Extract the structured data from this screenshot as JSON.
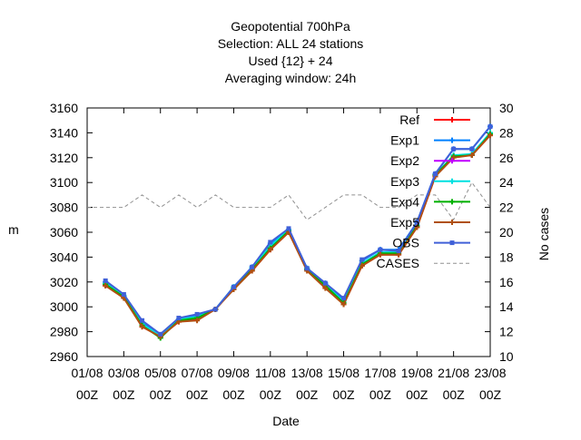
{
  "chart_data": {
    "type": "line",
    "title_lines": [
      "Geopotential 700hPa",
      "Selection: ALL      24 stations",
      "Used {12} + 24",
      "Averaging window: 24h"
    ],
    "xlabel": "Date",
    "ylabel": "m",
    "y2label": "No cases",
    "ylim": [
      2960,
      3160
    ],
    "yticks": [
      2960,
      2980,
      3000,
      3020,
      3040,
      3060,
      3080,
      3100,
      3120,
      3140,
      3160
    ],
    "y2lim": [
      10,
      30
    ],
    "y2ticks": [
      10,
      12,
      14,
      16,
      18,
      20,
      22,
      24,
      26,
      28,
      30
    ],
    "xlim": [
      0,
      22
    ],
    "xticks": [
      {
        "x": 0,
        "date": "01/08",
        "time": "00Z"
      },
      {
        "x": 2,
        "date": "03/08",
        "time": "00Z"
      },
      {
        "x": 4,
        "date": "05/08",
        "time": "00Z"
      },
      {
        "x": 6,
        "date": "07/08",
        "time": "00Z"
      },
      {
        "x": 8,
        "date": "09/08",
        "time": "00Z"
      },
      {
        "x": 10,
        "date": "11/08",
        "time": "00Z"
      },
      {
        "x": 12,
        "date": "13/08",
        "time": "00Z"
      },
      {
        "x": 14,
        "date": "15/08",
        "time": "00Z"
      },
      {
        "x": 16,
        "date": "17/08",
        "time": "00Z"
      },
      {
        "x": 18,
        "date": "19/08",
        "time": "00Z"
      },
      {
        "x": 20,
        "date": "21/08",
        "time": "00Z"
      },
      {
        "x": 22,
        "date": "23/08",
        "time": "00Z"
      }
    ],
    "x": [
      1,
      2,
      3,
      4,
      5,
      6,
      7,
      8,
      9,
      10,
      11,
      12,
      13,
      14,
      15,
      16,
      17,
      18,
      19,
      20,
      21,
      22
    ],
    "legend_position": "top-right",
    "series": [
      {
        "name": "Ref",
        "color": "#ff0000",
        "marker": "plus",
        "values": [
          3017,
          3008,
          2984,
          2976,
          2988,
          2990,
          2998,
          3015,
          3029,
          3046,
          3060,
          3030,
          3016,
          3002,
          3033,
          3042,
          3042,
          3064,
          3105,
          3121,
          3122,
          3138
        ]
      },
      {
        "name": "Exp1",
        "color": "#0080ff",
        "marker": "plus",
        "values": [
          3020,
          3009,
          2987,
          2977,
          2990,
          2993,
          2998,
          3016,
          3032,
          3051,
          3062,
          3031,
          3019,
          3005,
          3037,
          3046,
          3046,
          3068,
          3107,
          3127,
          3127,
          3145
        ]
      },
      {
        "name": "Exp2",
        "color": "#c000ff",
        "marker": "plus",
        "values": [
          3018,
          3008,
          2985,
          2976,
          2989,
          2991,
          2998,
          3015,
          3030,
          3048,
          3061,
          3030,
          3017,
          3003,
          3034,
          3043,
          3043,
          3065,
          3106,
          3121,
          3122,
          3139
        ]
      },
      {
        "name": "Exp3",
        "color": "#00e0e0",
        "marker": "plus",
        "values": [
          3019,
          3009,
          2986,
          2977,
          2990,
          2992,
          2998,
          3016,
          3031,
          3049,
          3062,
          3031,
          3018,
          3004,
          3035,
          3044,
          3044,
          3066,
          3106,
          3122,
          3123,
          3140
        ]
      },
      {
        "name": "Exp4",
        "color": "#00b000",
        "marker": "plus",
        "values": [
          3018,
          3008,
          2985,
          2975,
          2989,
          2991,
          2998,
          3015,
          3030,
          3047,
          3061,
          3030,
          3017,
          3003,
          3034,
          3043,
          3043,
          3065,
          3106,
          3121,
          3122,
          3139
        ]
      },
      {
        "name": "Exp5",
        "color": "#b05010",
        "marker": "plus",
        "values": [
          3017,
          3007,
          2984,
          2976,
          2988,
          2989,
          2998,
          3014,
          3029,
          3046,
          3060,
          3029,
          3015,
          3002,
          3033,
          3042,
          3042,
          3064,
          3105,
          3120,
          3122,
          3138
        ]
      },
      {
        "name": "OBS",
        "color": "#4060d8",
        "marker": "square",
        "values": [
          3021,
          3010,
          2989,
          2978,
          2991,
          2994,
          2998,
          3016,
          3032,
          3052,
          3063,
          3031,
          3019,
          3007,
          3038,
          3046,
          3045,
          3068,
          3107,
          3127,
          3127,
          3145
        ]
      }
    ],
    "cases_series": {
      "name": "CASES",
      "color": "#909090",
      "axis": "right",
      "x": [
        0,
        1,
        2,
        3,
        4,
        5,
        6,
        7,
        8,
        9,
        10,
        11,
        12,
        13,
        14,
        15,
        16,
        17,
        18,
        19,
        20,
        21,
        22
      ],
      "values": [
        22,
        22,
        22,
        23,
        22,
        23,
        22,
        23,
        22,
        22,
        22,
        23,
        21,
        22,
        23,
        23,
        22,
        22,
        23,
        23,
        21,
        24,
        22
      ]
    }
  }
}
